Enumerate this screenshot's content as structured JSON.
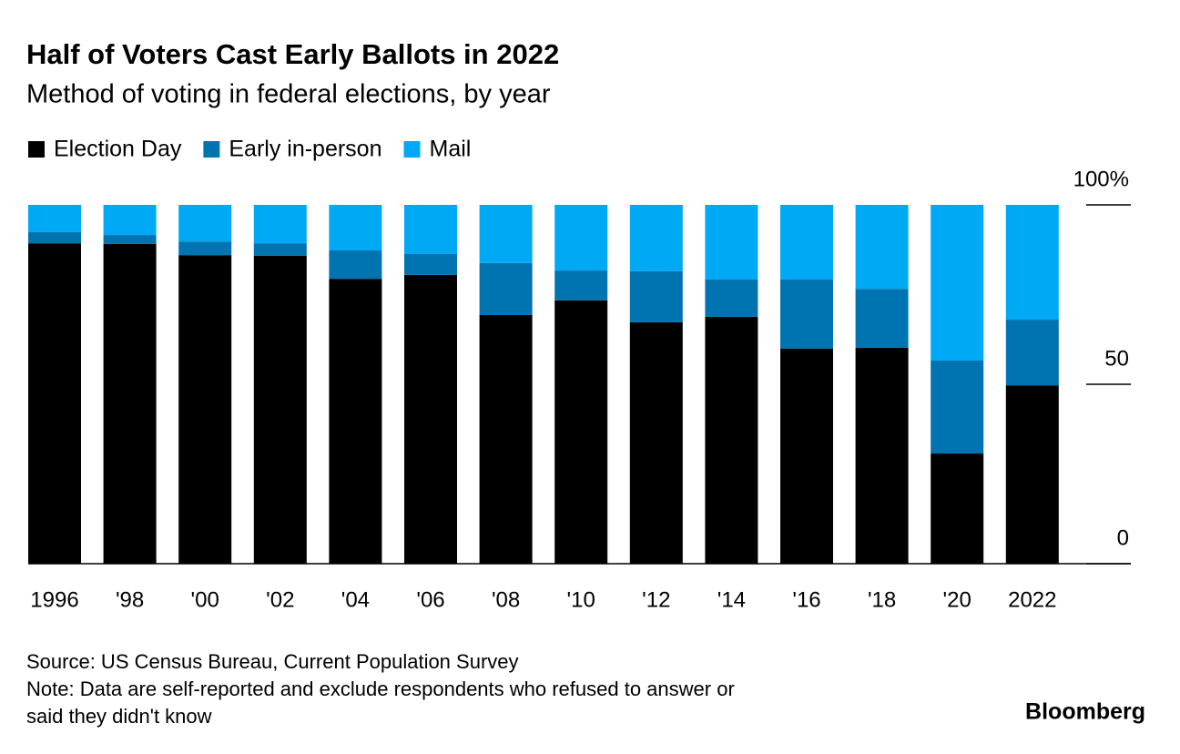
{
  "chart_data": {
    "type": "stacked_bar",
    "title": "Half of Voters Cast Early Ballots in 2022",
    "subtitle": "Method of voting in federal elections, by year",
    "categories": [
      "1996",
      "'98",
      "'00",
      "'02",
      "'04",
      "'06",
      "'08",
      "'10",
      "'12",
      "'14",
      "'16",
      "'18",
      "'20",
      "2022"
    ],
    "series": [
      {
        "name": "Election Day",
        "color": "#000000",
        "values": [
          89.3,
          89.1,
          86.0,
          85.8,
          79.4,
          80.5,
          69.3,
          73.4,
          67.3,
          68.8,
          59.9,
          60.2,
          30.7,
          49.7
        ]
      },
      {
        "name": "Early in-person",
        "color": "#0073b1",
        "values": [
          3.1,
          2.5,
          3.8,
          3.5,
          7.9,
          5.8,
          14.5,
          8.3,
          14.2,
          10.4,
          19.3,
          16.4,
          25.9,
          18.3
        ]
      },
      {
        "name": "Mail",
        "color": "#00a9f4",
        "values": [
          7.6,
          8.4,
          10.2,
          10.7,
          12.7,
          13.7,
          16.2,
          18.3,
          18.5,
          20.8,
          20.8,
          23.4,
          43.4,
          32.0
        ]
      }
    ],
    "ylim": [
      0,
      100
    ],
    "yticks": [
      0,
      50,
      {
        "value": 100,
        "label": "100%"
      }
    ],
    "source": "Source: US Census Bureau, Current Population Survey",
    "note": [
      "Note: Data are self-reported and exclude respondents who refused to answer or",
      "said they didn't know"
    ],
    "brand": "Bloomberg"
  }
}
